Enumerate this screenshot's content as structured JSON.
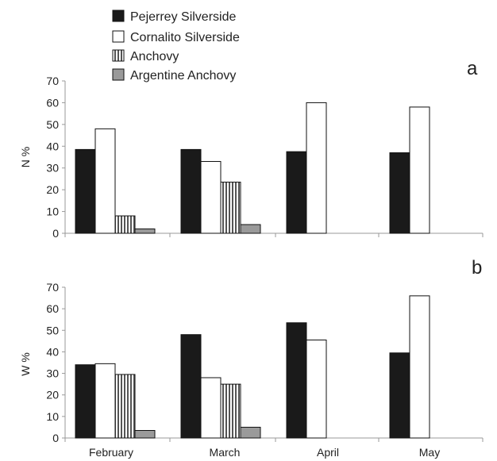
{
  "chart_data": [
    {
      "panel": "a",
      "type": "bar",
      "ylabel": "N %",
      "ylim": [
        0,
        70
      ],
      "yticks": [
        0,
        10,
        20,
        30,
        40,
        50,
        60,
        70
      ],
      "categories": [
        "February",
        "March",
        "April",
        "May"
      ],
      "series": [
        {
          "name": "Pejerrey Silverside",
          "values": [
            38.5,
            38.5,
            37.5,
            37
          ]
        },
        {
          "name": "Cornalito Silverside",
          "values": [
            48,
            33,
            60,
            58
          ]
        },
        {
          "name": "Anchovy",
          "values": [
            8,
            23.5,
            null,
            null
          ]
        },
        {
          "name": "Argentine Anchovy",
          "values": [
            2,
            4,
            null,
            null
          ]
        }
      ],
      "grid": false,
      "legend": "top-left"
    },
    {
      "panel": "b",
      "type": "bar",
      "ylabel": "W %",
      "ylim": [
        0,
        70
      ],
      "yticks": [
        0,
        10,
        20,
        30,
        40,
        50,
        60,
        70
      ],
      "categories": [
        "February",
        "March",
        "April",
        "May"
      ],
      "series": [
        {
          "name": "Pejerrey Silverside",
          "values": [
            34,
            48,
            53.5,
            39.5
          ]
        },
        {
          "name": "Cornalito Silverside",
          "values": [
            34.5,
            28,
            45.5,
            66
          ]
        },
        {
          "name": "Anchovy",
          "values": [
            29.5,
            25,
            null,
            null
          ]
        },
        {
          "name": "Argentine Anchovy",
          "values": [
            3.5,
            5,
            null,
            null
          ]
        }
      ],
      "grid": false
    }
  ],
  "legend": [
    {
      "label": "Pejerrey Silverside",
      "style": "solid-black"
    },
    {
      "label": "Cornalito Silverside",
      "style": "white"
    },
    {
      "label": "Anchovy",
      "style": "vertical-hatch"
    },
    {
      "label": "Argentine Anchovy",
      "style": "grey"
    }
  ],
  "colors": {
    "pejerrey": "#1a1a1a",
    "cornalito": "#ffffff",
    "anchovy_stripe": "#555555",
    "argentine": "#9a9a9a",
    "axis": "#999999"
  }
}
